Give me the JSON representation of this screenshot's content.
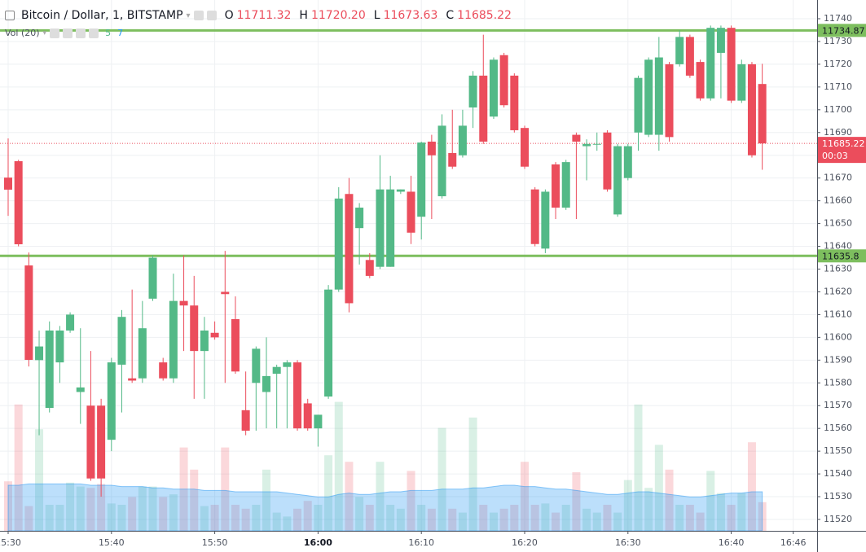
{
  "chart_data": {
    "type": "candlestick",
    "title": "Bitcoin / Dollar, 1, BITSTAMP",
    "legend": {
      "o_label": "O",
      "o": "11711.32",
      "h_label": "H",
      "h": "11720.20",
      "l_label": "L",
      "l": "11673.63",
      "c_label": "C",
      "c": "11685.22"
    },
    "volume_legend": {
      "label": "Vol (20)",
      "up": "5",
      "down": "7"
    },
    "up_color": "#53b987",
    "down_color": "#eb4d5c",
    "x": [
      "15:30",
      "15:31",
      "15:32",
      "15:33",
      "15:34",
      "15:35",
      "15:36",
      "15:37",
      "15:38",
      "15:39",
      "15:40",
      "15:41",
      "15:42",
      "15:43",
      "15:44",
      "15:45",
      "15:46",
      "15:47",
      "15:48",
      "15:49",
      "15:50",
      "15:51",
      "15:52",
      "15:53",
      "15:54",
      "15:55",
      "15:56",
      "15:57",
      "15:58",
      "15:59",
      "16:00",
      "16:01",
      "16:02",
      "16:03",
      "16:04",
      "16:05",
      "16:06",
      "16:07",
      "16:08",
      "16:09",
      "16:10",
      "16:11",
      "16:12",
      "16:13",
      "16:14",
      "16:15",
      "16:16",
      "16:17",
      "16:18",
      "16:19",
      "16:20",
      "16:21",
      "16:22",
      "16:23",
      "16:24",
      "16:25",
      "16:26",
      "16:27",
      "16:28",
      "16:29",
      "16:30",
      "16:31",
      "16:32",
      "16:33",
      "16:34",
      "16:35",
      "16:36",
      "16:37",
      "16:38",
      "16:39",
      "16:40",
      "16:41",
      "16:42",
      "16:43"
    ],
    "open": [
      11670.2,
      11677.4,
      11631.6,
      11590,
      11569,
      11589,
      11603,
      11576,
      11570,
      11570,
      11555,
      11588,
      11582,
      11582,
      11617,
      11589,
      11582,
      11616,
      11614,
      11594,
      11602,
      11620,
      11608,
      11568,
      11580,
      11576,
      11584,
      11587,
      11589,
      11571,
      11560,
      11574,
      11621,
      11663,
      11648,
      11634,
      11631,
      11631,
      11664,
      11664,
      11653,
      11686,
      11662,
      11681,
      11680,
      11701,
      11715,
      11697,
      11724,
      11715,
      11692,
      11665,
      11639,
      11676,
      11657,
      11689,
      11684,
      11685,
      11690,
      11654,
      11670,
      11690,
      11689,
      11689,
      11720,
      11720,
      11732,
      11721,
      11705,
      11725,
      11736,
      11704,
      11720,
      11711.32
    ],
    "high": [
      11687.4,
      11678,
      11637.3,
      11603,
      11607,
      11605,
      11611,
      11604,
      11594,
      11573,
      11591,
      11612,
      11621,
      11616,
      11636,
      11591,
      11628,
      11636,
      11627,
      11609,
      11607,
      11638,
      11618,
      11585,
      11596,
      11600,
      11588,
      11590,
      11590,
      11573,
      11566,
      11623,
      11666,
      11670,
      11659,
      11637,
      11680,
      11671,
      11665,
      11671,
      11686,
      11689,
      11698,
      11700,
      11700,
      11717,
      11733,
      11723,
      11725,
      11716,
      11693,
      11666,
      11665,
      11677,
      11678,
      11690,
      11687,
      11690,
      11691,
      11685,
      11685,
      11715,
      11723,
      11732,
      11721,
      11735,
      11733,
      11722,
      11737,
      11737,
      11737,
      11722,
      11721,
      11720.2
    ],
    "low": [
      11653.4,
      11640,
      11587.2,
      11557,
      11567,
      11580,
      11602,
      11562,
      11537,
      11530,
      11550,
      11567,
      11580,
      11580,
      11616,
      11581,
      11580,
      11594,
      11573,
      11573,
      11599,
      11580,
      11584,
      11557,
      11559,
      11560,
      11560,
      11560,
      11559,
      11559,
      11552,
      11573,
      11620,
      11611,
      11632,
      11626,
      11630,
      11631,
      11663,
      11641,
      11643,
      11652,
      11661,
      11674,
      11679,
      11692,
      11685,
      11696,
      11701,
      11690,
      11674,
      11640,
      11637,
      11652,
      11656,
      11652,
      11669,
      11682,
      11664,
      11653,
      11669,
      11682,
      11688,
      11682,
      11686,
      11719,
      11714,
      11704,
      11704,
      11705,
      11703,
      11703,
      11679,
      11673.63
    ],
    "close": [
      11664.9,
      11640.9,
      11590.1,
      11596,
      11603,
      11603,
      11610,
      11578,
      11538,
      11538,
      11589,
      11609,
      11581,
      11604,
      11635,
      11582,
      11616,
      11614,
      11594,
      11603,
      11600,
      11619,
      11585,
      11559,
      11595,
      11583,
      11587,
      11589,
      11560,
      11560,
      11566,
      11621,
      11661,
      11615,
      11657,
      11627,
      11665,
      11665,
      11665,
      11646,
      11685.6,
      11680,
      11693,
      11675,
      11693,
      11715,
      11686,
      11722,
      11702,
      11691,
      11675,
      11641,
      11664,
      11657,
      11677,
      11686,
      11685,
      11685,
      11665,
      11684,
      11684,
      11714,
      11722,
      11723,
      11688,
      11732,
      11715,
      11705,
      11736,
      11736,
      11704,
      11720,
      11680,
      11685.22
    ],
    "volume": [
      38,
      97,
      19,
      78,
      20,
      20,
      37,
      34,
      33,
      36,
      21,
      20,
      26,
      34,
      34,
      26,
      28,
      64,
      47,
      19,
      20,
      64,
      20,
      17,
      20,
      47,
      14,
      11,
      17,
      23,
      20,
      58,
      99,
      53,
      26,
      20,
      53,
      20,
      17,
      46,
      20,
      17,
      79,
      17,
      14,
      87,
      20,
      14,
      17,
      20,
      53,
      20,
      21,
      14,
      20,
      45,
      17,
      14,
      20,
      14,
      39,
      97,
      33,
      66,
      47,
      20,
      20,
      14,
      46,
      29,
      20,
      29,
      68,
      22
    ],
    "vol_ma": [
      35,
      35,
      36,
      36,
      36,
      36,
      36,
      36,
      35,
      35,
      35,
      34,
      34,
      34,
      33,
      33,
      32,
      32,
      32,
      31,
      31,
      31,
      30,
      30,
      30,
      30,
      30,
      29,
      28,
      27,
      26,
      26,
      28,
      29,
      28,
      28,
      29,
      30,
      30,
      31,
      31,
      31,
      32,
      32,
      32,
      33,
      33,
      34,
      35,
      35,
      34,
      34,
      33,
      32,
      32,
      31,
      30,
      29,
      28,
      28,
      29,
      30,
      30,
      29,
      28,
      27,
      26,
      26,
      27,
      28,
      29,
      29,
      30,
      30
    ],
    "vol_ylim": [
      0,
      100
    ],
    "vol_color": "#2196f3",
    "ylim": [
      11520,
      11740
    ],
    "yticks": [
      11740,
      11730,
      11720,
      11710,
      11700,
      11690,
      11680,
      11670,
      11660,
      11650,
      11640,
      11630,
      11620,
      11610,
      11600,
      11590,
      11580,
      11570,
      11560,
      11550,
      11540,
      11530,
      11520
    ],
    "xticks": [
      "15:30",
      "15:40",
      "15:50",
      {
        "value": "16:00",
        "label": "16:00",
        "bold": true
      },
      "16:10",
      "16:20",
      "16:30",
      "16:40",
      "16:46"
    ],
    "grid": true,
    "hlines": [
      {
        "value": 11734.87,
        "color": "#7dbe5e"
      },
      {
        "value": 11635.8,
        "color": "#7dbe5e"
      }
    ],
    "last_price": {
      "value": 11685.22,
      "countdown": "00:03",
      "color": "#eb4d5c"
    }
  }
}
